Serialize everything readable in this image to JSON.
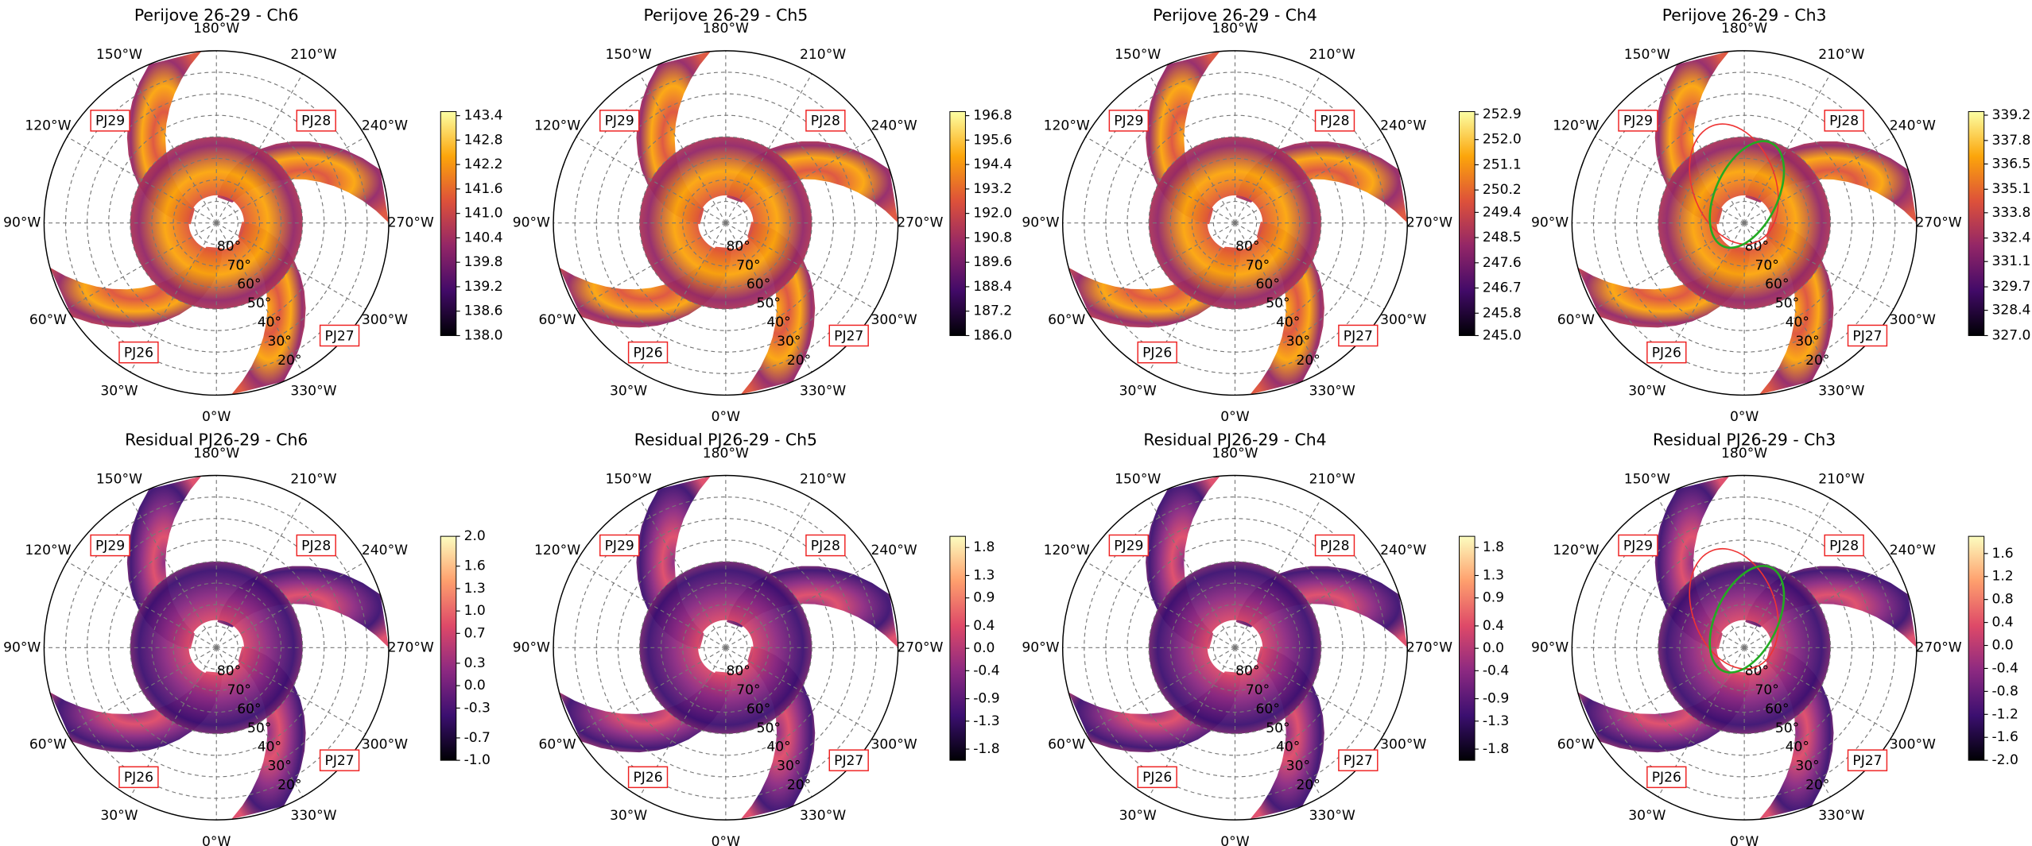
{
  "panel_labels": {
    "longitude": [
      "180°W",
      "210°W",
      "240°W",
      "270°W",
      "300°W",
      "330°W",
      "0°W",
      "30°W",
      "60°W",
      "90°W",
      "120°W",
      "150°W"
    ],
    "latitude": [
      "80°",
      "70°",
      "60°",
      "50°",
      "40°",
      "30°",
      "20°"
    ],
    "perijoves": [
      "PJ29",
      "PJ28",
      "PJ27",
      "PJ26"
    ]
  },
  "chart_data": [
    {
      "type": "polar-map",
      "title": "Perijove 26-29 - Ch6",
      "colormap": "inferno",
      "clim": [
        138.0,
        143.5
      ],
      "cticks": [
        143.4,
        142.8,
        142.2,
        141.6,
        {
          "value": 141.0,
          "label": "141.0"
        },
        140.4,
        139.8,
        139.2,
        138.6,
        {
          "value": 138.0,
          "label": "138.0"
        }
      ]
    },
    {
      "type": "polar-map",
      "title": "Perijove 26-29 - Ch5",
      "colormap": "inferno",
      "clim": [
        186.0,
        197.0
      ],
      "cticks": [
        196.8,
        195.6,
        194.4,
        193.2,
        {
          "value": 192.0,
          "label": "192.0"
        },
        190.8,
        189.6,
        188.4,
        187.2,
        {
          "value": 186.0,
          "label": "186.0"
        }
      ]
    },
    {
      "type": "polar-map",
      "title": "Perijove 26-29 - Ch4",
      "colormap": "inferno",
      "clim": [
        245.0,
        253.0
      ],
      "cticks": [
        252.9,
        {
          "value": 252.0,
          "label": "252.0"
        },
        251.1,
        250.2,
        249.4,
        248.5,
        247.6,
        246.7,
        245.8,
        {
          "value": 245.0,
          "label": "245.0"
        }
      ]
    },
    {
      "type": "polar-map",
      "title": "Perijove 26-29 - Ch3",
      "colormap": "inferno",
      "clim": [
        327.0,
        339.4
      ],
      "cticks": [
        339.2,
        337.8,
        336.5,
        335.1,
        333.8,
        332.4,
        331.1,
        329.7,
        328.4,
        {
          "value": 327.0,
          "label": "327.0"
        }
      ]
    },
    {
      "type": "polar-map",
      "title": "Residual PJ26-29 - Ch6",
      "colormap": "magma",
      "clim": [
        -1.0,
        2.0
      ],
      "cticks": [
        {
          "value": 2.0,
          "label": "2.0"
        },
        1.6,
        1.3,
        {
          "value": 1.0,
          "label": "1.0"
        },
        0.7,
        0.3,
        {
          "value": 0.0,
          "label": "0.0"
        },
        -0.3,
        -0.7,
        {
          "value": -1.0,
          "label": "-1.0"
        }
      ]
    },
    {
      "type": "polar-map",
      "title": "Residual PJ26-29 - Ch5",
      "colormap": "magma",
      "clim": [
        -2.0,
        2.0
      ],
      "cticks": [
        1.8,
        1.3,
        0.9,
        0.4,
        {
          "value": 0.0,
          "label": "0.0"
        },
        -0.4,
        -0.9,
        -1.3,
        -1.8
      ]
    },
    {
      "type": "polar-map",
      "title": "Residual PJ26-29 - Ch4",
      "colormap": "magma",
      "clim": [
        -2.0,
        2.0
      ],
      "cticks": [
        1.8,
        1.3,
        0.9,
        0.4,
        {
          "value": 0.0,
          "label": "0.0"
        },
        -0.4,
        -0.9,
        -1.3,
        -1.8
      ]
    },
    {
      "type": "polar-map",
      "title": "Residual PJ26-29 - Ch3",
      "colormap": "magma",
      "clim": [
        -2.0,
        1.9
      ],
      "cticks": [
        1.6,
        1.2,
        0.8,
        0.4,
        {
          "value": 0.0,
          "label": "0.0"
        },
        -0.4,
        -0.8,
        -1.2,
        -1.6,
        {
          "value": -2.0,
          "label": "-2.0"
        }
      ]
    }
  ]
}
